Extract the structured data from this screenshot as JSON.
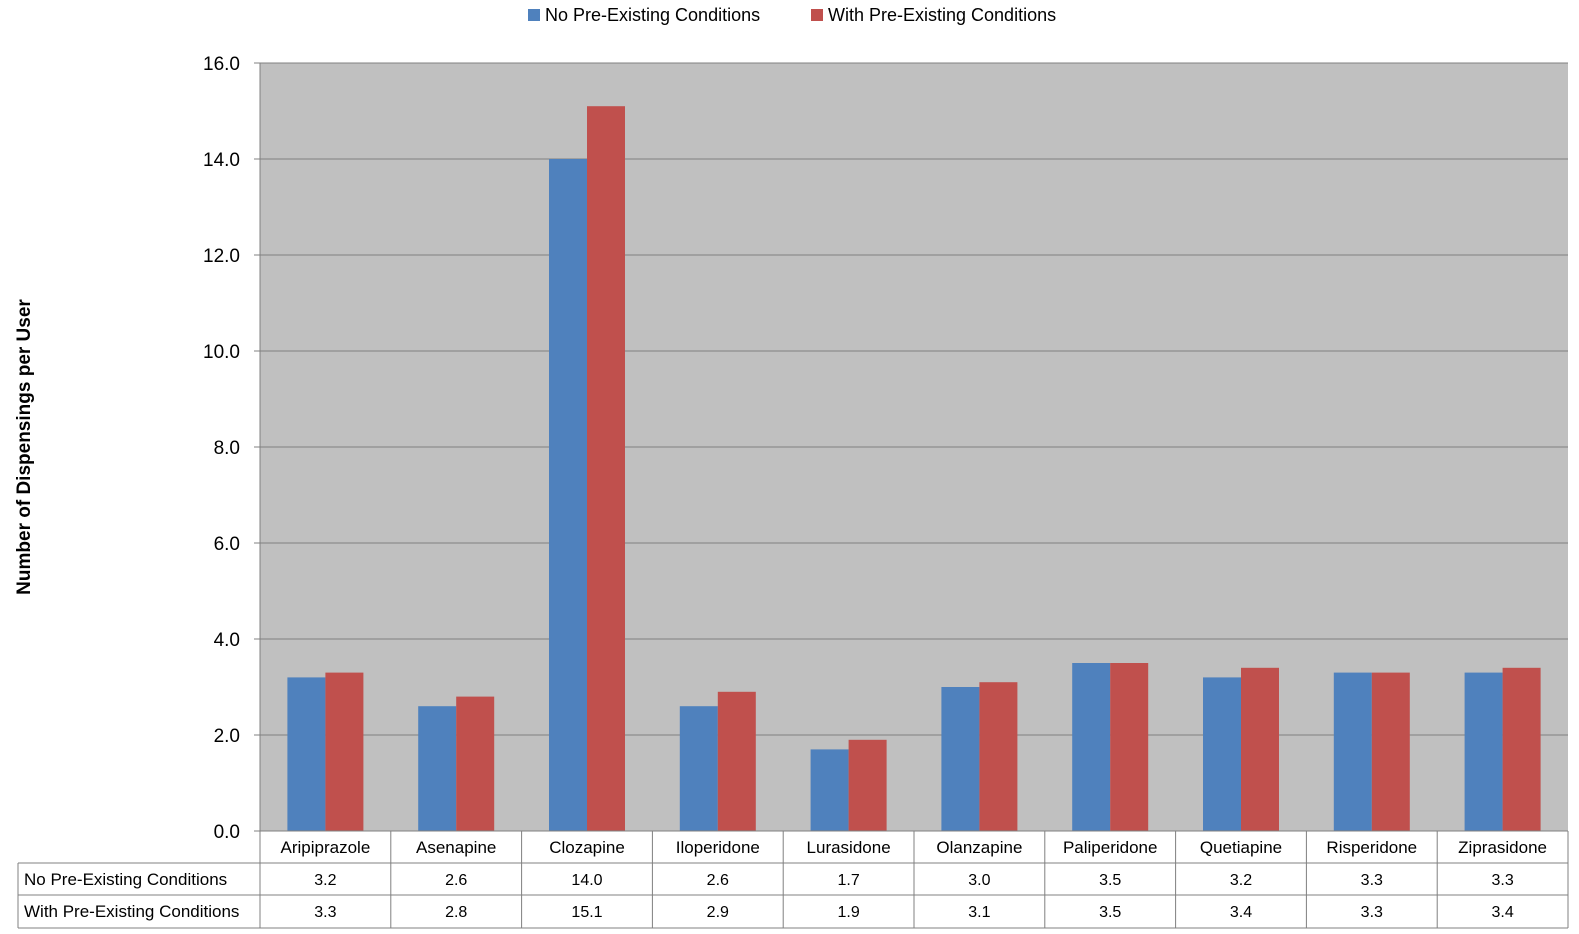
{
  "chart_data": {
    "type": "bar",
    "title": "",
    "xlabel": "",
    "ylabel": "Number of Dispensings per User",
    "ylim": [
      0,
      16
    ],
    "yticks": [
      "0.0",
      "2.0",
      "4.0",
      "6.0",
      "8.0",
      "10.0",
      "12.0",
      "14.0",
      "16.0"
    ],
    "grid": true,
    "legend_position": "top",
    "categories": [
      "Aripiprazole",
      "Asenapine",
      "Clozapine",
      "Iloperidone",
      "Lurasidone",
      "Olanzapine",
      "Paliperidone",
      "Quetiapine",
      "Risperidone",
      "Ziprasidone"
    ],
    "series": [
      {
        "name": "No Pre-Existing Conditions",
        "color": "#4f81bd",
        "values": [
          3.2,
          2.6,
          14.0,
          2.6,
          1.7,
          3.0,
          3.5,
          3.2,
          3.3,
          3.3
        ],
        "labels": [
          "3.2",
          "2.6",
          "14.0",
          "2.6",
          "1.7",
          "3.0",
          "3.5",
          "3.2",
          "3.3",
          "3.3"
        ]
      },
      {
        "name": "With Pre-Existing Conditions",
        "color": "#c0504d",
        "values": [
          3.3,
          2.8,
          15.1,
          2.9,
          1.9,
          3.1,
          3.5,
          3.4,
          3.3,
          3.4
        ],
        "labels": [
          "3.3",
          "2.8",
          "15.1",
          "2.9",
          "1.9",
          "3.1",
          "3.5",
          "3.4",
          "3.3",
          "3.4"
        ]
      }
    ],
    "plot_background": "#c0c0c0",
    "gridline_color": "#808080"
  }
}
